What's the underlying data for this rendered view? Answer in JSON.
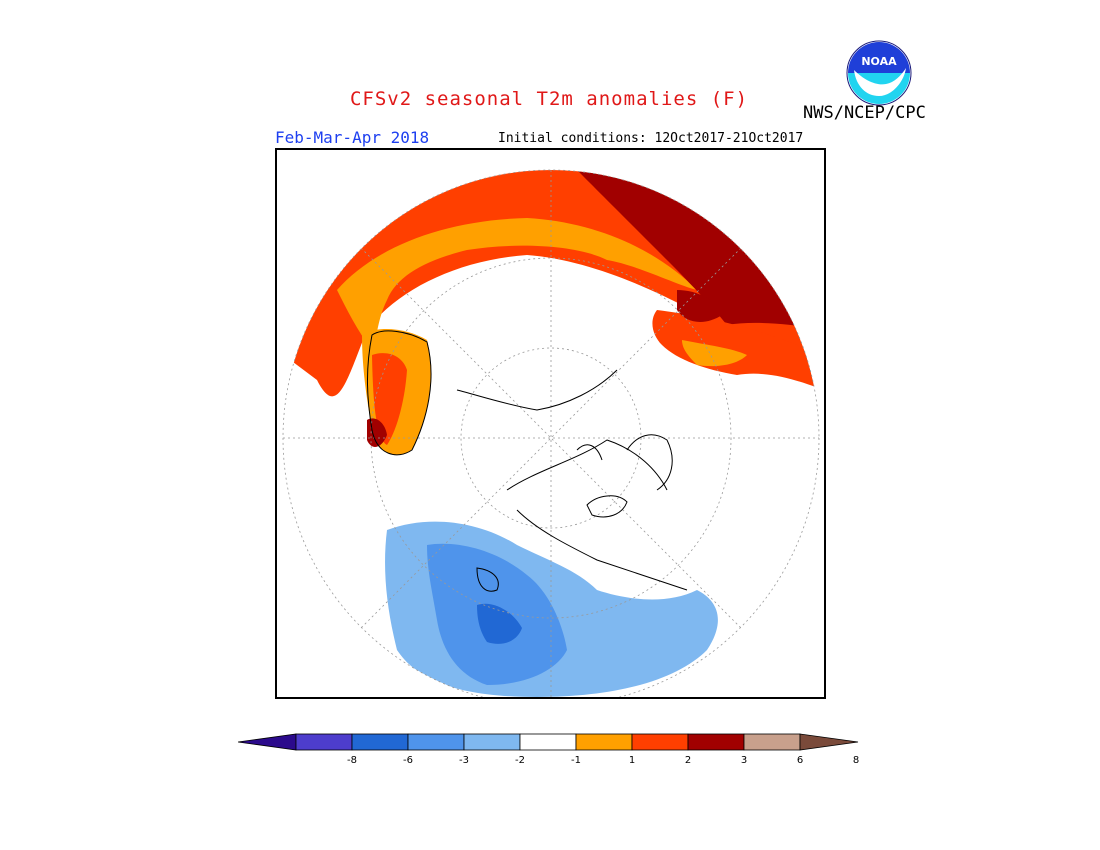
{
  "title": "CFSv2 seasonal T2m anomalies (F)",
  "agency": "NWS/NCEP/CPC",
  "season": "Feb-Mar-Apr 2018",
  "initial_conditions": "Initial conditions: 12Oct2017-21Oct2017",
  "logo": {
    "text": "NOAA",
    "icon": "noaa-logo-icon"
  },
  "colors": {
    "warm_1_2": "#ffa000",
    "warm_2_3": "#ff3f00",
    "warm_3_6": "#a10000",
    "warm_6_8": "#c8a08c",
    "warm_gt8": "#7a4a3a",
    "cool_1_2": "#7fb8f0",
    "cool_2_3": "#4f94eb",
    "cool_3_6": "#2168d4",
    "cool_6_8": "#4d3dcc",
    "cool_lt8": "#2b0a8c",
    "neutral": "#ffffff",
    "title": "#e01818",
    "season": "#1d3ff0"
  },
  "legend": {
    "ticks": [
      "-8",
      "-6",
      "-3",
      "-2",
      "-1",
      "1",
      "2",
      "3",
      "6",
      "8"
    ],
    "bins": [
      "#4d3dcc",
      "#2168d4",
      "#4f94eb",
      "#7fb8f0",
      "#ffffff",
      "#ffa000",
      "#ff3f00",
      "#a10000",
      "#c8a08c"
    ],
    "low_arrow": "#2b0a8c",
    "high_arrow": "#7a4a3a"
  }
}
